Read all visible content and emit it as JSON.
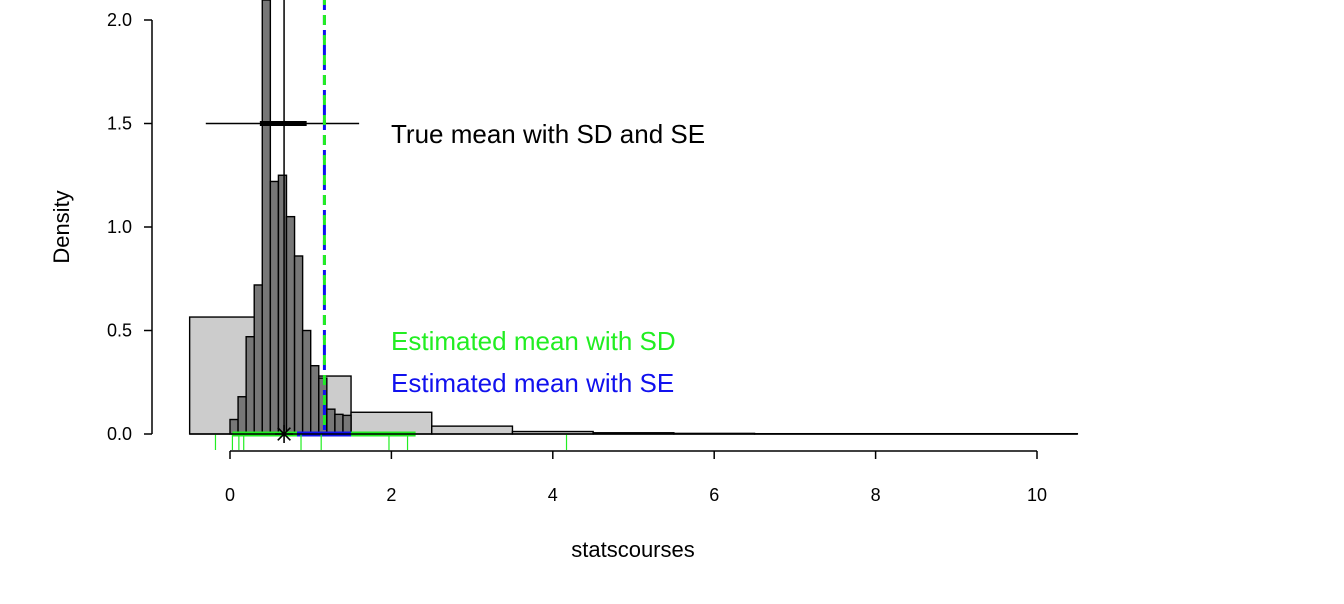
{
  "chart_data": {
    "type": "histogram",
    "xlabel": "statscourses",
    "ylabel": "Density",
    "xlim": [
      -0.5,
      10.5
    ],
    "ylim": [
      0,
      2.0
    ],
    "x_ticks": [
      0,
      2,
      4,
      6,
      8,
      10
    ],
    "y_ticks": [
      0.0,
      0.5,
      1.0,
      1.5,
      2.0
    ],
    "background_histogram": {
      "fill": "#cccccc",
      "bins": [
        {
          "x0": -0.5,
          "x1": 0.5,
          "density": 0.565
        },
        {
          "x0": 0.5,
          "x1": 1.5,
          "density": 0.28
        },
        {
          "x0": 1.5,
          "x1": 2.5,
          "density": 0.105
        },
        {
          "x0": 2.5,
          "x1": 3.5,
          "density": 0.038
        },
        {
          "x0": 3.5,
          "x1": 4.5,
          "density": 0.012
        },
        {
          "x0": 4.5,
          "x1": 5.5,
          "density": 0.006
        },
        {
          "x0": 5.5,
          "x1": 6.5,
          "density": 0.003
        },
        {
          "x0": 6.5,
          "x1": 10.5,
          "density": 0.0015
        }
      ]
    },
    "sampling_histogram": {
      "fill": "#777777",
      "bins": [
        {
          "x0": 0.0,
          "x1": 0.1,
          "density": 0.07
        },
        {
          "x0": 0.1,
          "x1": 0.2,
          "density": 0.18
        },
        {
          "x0": 0.2,
          "x1": 0.3,
          "density": 0.47
        },
        {
          "x0": 0.3,
          "x1": 0.4,
          "density": 0.72
        },
        {
          "x0": 0.4,
          "x1": 0.5,
          "density": 2.1
        },
        {
          "x0": 0.5,
          "x1": 0.6,
          "density": 1.22
        },
        {
          "x0": 0.6,
          "x1": 0.7,
          "density": 1.25
        },
        {
          "x0": 0.7,
          "x1": 0.8,
          "density": 1.05
        },
        {
          "x0": 0.8,
          "x1": 0.9,
          "density": 0.86
        },
        {
          "x0": 0.9,
          "x1": 1.0,
          "density": 0.5
        },
        {
          "x0": 1.0,
          "x1": 1.1,
          "density": 0.33
        },
        {
          "x0": 1.1,
          "x1": 1.2,
          "density": 0.27
        },
        {
          "x0": 1.2,
          "x1": 1.3,
          "density": 0.12
        },
        {
          "x0": 1.3,
          "x1": 1.4,
          "density": 0.095
        },
        {
          "x0": 1.4,
          "x1": 1.5,
          "density": 0.09
        }
      ]
    },
    "true_mean": {
      "mean": 0.67,
      "sd_range": [
        -0.3,
        1.6
      ],
      "se_range": [
        0.37,
        0.95
      ],
      "y": 1.5,
      "color": "#000000",
      "label": "True mean with SD and SE"
    },
    "estimated_mean": {
      "mean": 1.17,
      "sd_range": [
        0.03,
        2.3
      ],
      "se_range": [
        0.83,
        1.5
      ],
      "sd_color": "#22ee22",
      "se_color": "#1111ee",
      "sd_label": "Estimated mean with SD",
      "se_label": "Estimated mean with SE"
    },
    "sample_rug": {
      "values": [
        -0.18,
        0.03,
        0.11,
        0.17,
        0.88,
        1.13,
        1.97,
        2.2,
        4.17
      ],
      "color": "#22ee22"
    }
  }
}
